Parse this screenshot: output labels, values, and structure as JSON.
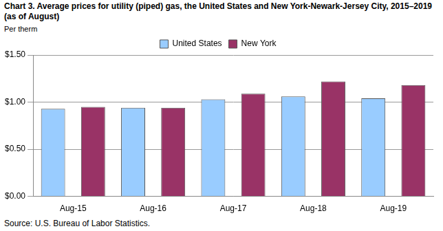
{
  "chart_data": {
    "type": "bar",
    "title": "Chart 3. Average prices for utility (piped) gas, the United States and New York-Newark-Jersey City, 2015–2019  (as of August)",
    "y_label": "Per therm",
    "source": "Source: U.S. Bureau of Labor Statistics.",
    "categories": [
      "Aug-15",
      "Aug-16",
      "Aug-17",
      "Aug-18",
      "Aug-19"
    ],
    "series": [
      {
        "name": "United States",
        "color": "#99ccff",
        "values": [
          0.93,
          0.94,
          1.03,
          1.06,
          1.04
        ]
      },
      {
        "name": "New York",
        "color": "#993366",
        "values": [
          0.95,
          0.94,
          1.09,
          1.22,
          1.18
        ]
      }
    ],
    "ylim": [
      0,
      1.5
    ],
    "yticks": [
      {
        "value": 0,
        "label": "$0.00"
      },
      {
        "value": 0.5,
        "label": "$0.50"
      },
      {
        "value": 1,
        "label": "$1.00"
      },
      {
        "value": 1.5,
        "label": "$1.50"
      }
    ],
    "grid": true,
    "legend": "top"
  }
}
